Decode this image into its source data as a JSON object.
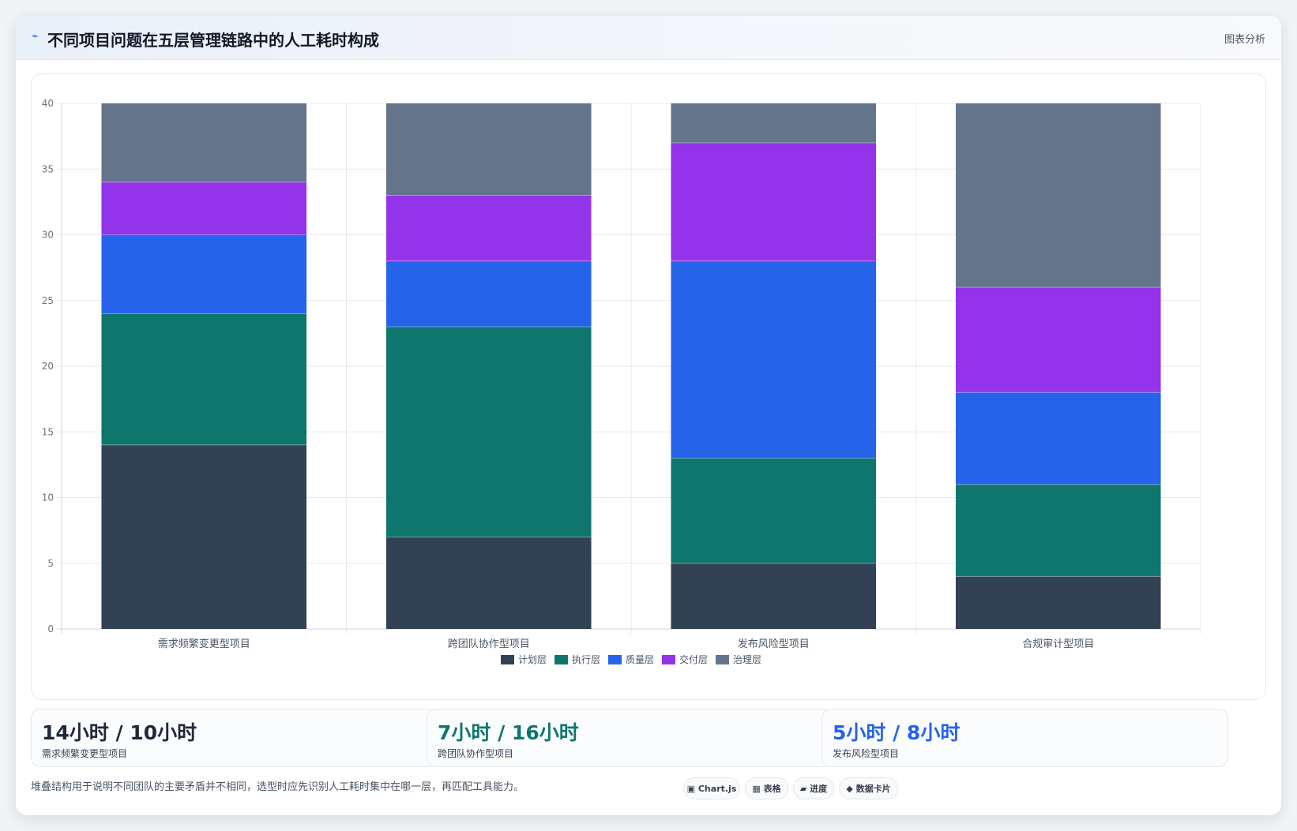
{
  "header": {
    "icon": "⌁",
    "title": "不同项目问题在五层管理链路中的人工耗时构成",
    "tag": "图表分析"
  },
  "chart_data": {
    "type": "bar",
    "stacked": true,
    "categories": [
      "需求频繁变更型项目",
      "跨团队协作型项目",
      "发布风险型项目",
      "合规审计型项目"
    ],
    "series": [
      {
        "name": "计划层",
        "color": "#334155",
        "values": [
          14,
          7,
          5,
          4
        ]
      },
      {
        "name": "执行层",
        "color": "#0f766e",
        "values": [
          10,
          16,
          8,
          7
        ]
      },
      {
        "name": "质量层",
        "color": "#2563eb",
        "values": [
          6,
          5,
          15,
          7
        ]
      },
      {
        "name": "交付层",
        "color": "#9333ea",
        "values": [
          4,
          5,
          9,
          8
        ]
      },
      {
        "name": "治理层",
        "color": "#64748b",
        "values": [
          6,
          7,
          3,
          14
        ]
      }
    ],
    "yticks": [
      0,
      5,
      10,
      15,
      20,
      25,
      30,
      35,
      40
    ],
    "ylim": [
      0,
      40
    ],
    "grid": true,
    "legend": "bottom"
  },
  "stats": [
    {
      "value": "14小时 / 10小时",
      "label": "需求频繁变更型项目",
      "color": "#1f2937"
    },
    {
      "value": "7小时 / 16小时",
      "label": "跨团队协作型项目",
      "color": "#0f766e"
    },
    {
      "value": "5小时 / 8小时",
      "label": "发布风险型项目",
      "color": "#2563eb"
    }
  ],
  "footer": {
    "note": "堆叠结构用于说明不同团队的主要矛盾并不相同，选型时应先识别人工耗时集中在哪一层，再匹配工具能力。",
    "pills": [
      "▣ Chart.js",
      "▦ 表格",
      "▰ 进度",
      "◆ 数据卡片"
    ]
  }
}
